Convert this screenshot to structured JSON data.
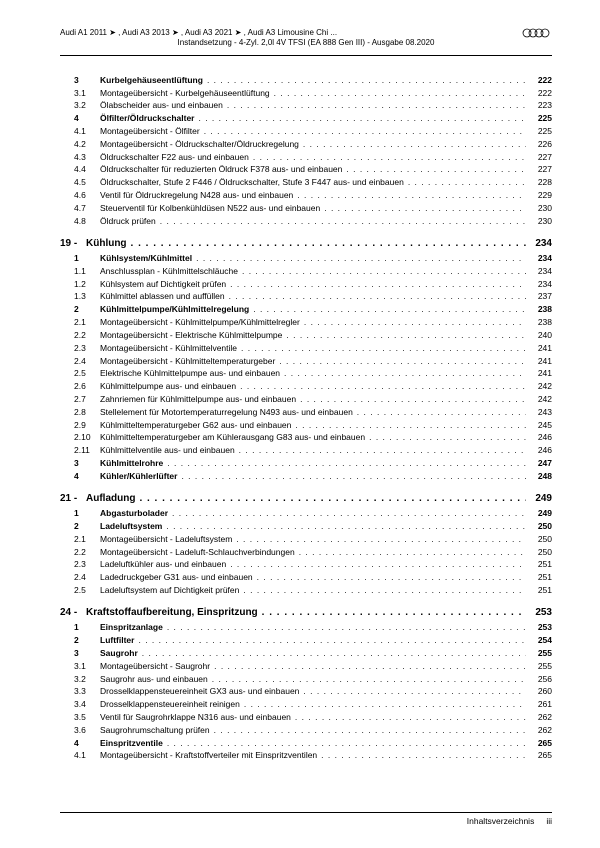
{
  "header": {
    "line1": "Audi A1 2011 ➤ , Audi A3 2013 ➤ , Audi A3 2021 ➤ , Audi A3 Limousine Chi ...",
    "line2": "Instandsetzung - 4-Zyl. 2,0l 4V TFSI (EA 888 Gen III) - Ausgabe 08.2020"
  },
  "footer": {
    "label": "Inhaltsverzeichnis",
    "page": "iii"
  },
  "toc": [
    {
      "type": "section",
      "num": "3",
      "title": "Kurbelgehäuseentlüftung",
      "page": "222",
      "bold": true
    },
    {
      "type": "sub",
      "num": "3.1",
      "title": "Montageübersicht - Kurbelgehäuseentlüftung",
      "page": "222"
    },
    {
      "type": "sub",
      "num": "3.2",
      "title": "Ölabscheider aus- und einbauen",
      "page": "223"
    },
    {
      "type": "section",
      "num": "4",
      "title": "Ölfilter/Öldruckschalter",
      "page": "225",
      "bold": true
    },
    {
      "type": "sub",
      "num": "4.1",
      "title": "Montageübersicht - Ölfilter",
      "page": "225"
    },
    {
      "type": "sub",
      "num": "4.2",
      "title": "Montageübersicht - Öldruckschalter/Öldruckregelung",
      "page": "226"
    },
    {
      "type": "sub",
      "num": "4.3",
      "title": "Öldruckschalter F22 aus- und einbauen",
      "page": "227"
    },
    {
      "type": "sub",
      "num": "4.4",
      "title": "Öldruckschalter für reduzierten Öldruck F378 aus- und einbauen",
      "page": "227"
    },
    {
      "type": "sub",
      "num": "4.5",
      "title": "Öldruckschalter, Stufe 2 F446 / Öldruckschalter, Stufe 3 F447 aus- und einbauen",
      "page": "228"
    },
    {
      "type": "sub",
      "num": "4.6",
      "title": "Ventil für Öldruckregelung N428 aus- und einbauen",
      "page": "229"
    },
    {
      "type": "sub",
      "num": "4.7",
      "title": "Steuerventil für Kolbenkühldüsen N522 aus- und einbauen",
      "page": "230"
    },
    {
      "type": "sub",
      "num": "4.8",
      "title": "Öldruck prüfen",
      "page": "230"
    },
    {
      "type": "chapter",
      "num": "19 -",
      "title": "Kühlung",
      "page": "234"
    },
    {
      "type": "section",
      "num": "1",
      "title": "Kühlsystem/Kühlmittel",
      "page": "234",
      "bold": true
    },
    {
      "type": "sub",
      "num": "1.1",
      "title": "Anschlussplan - Kühlmittelschläuche",
      "page": "234"
    },
    {
      "type": "sub",
      "num": "1.2",
      "title": "Kühlsystem auf Dichtigkeit prüfen",
      "page": "234"
    },
    {
      "type": "sub",
      "num": "1.3",
      "title": "Kühlmittel ablassen und auffüllen",
      "page": "237"
    },
    {
      "type": "section",
      "num": "2",
      "title": "Kühlmittelpumpe/Kühlmittelregelung",
      "page": "238",
      "bold": true
    },
    {
      "type": "sub",
      "num": "2.1",
      "title": "Montageübersicht - Kühlmittelpumpe/Kühlmittelregler",
      "page": "238"
    },
    {
      "type": "sub",
      "num": "2.2",
      "title": "Montageübersicht - Elektrische Kühlmittelpumpe",
      "page": "240"
    },
    {
      "type": "sub",
      "num": "2.3",
      "title": "Montageübersicht - Kühlmittelventile",
      "page": "241"
    },
    {
      "type": "sub",
      "num": "2.4",
      "title": "Montageübersicht - Kühlmitteltemperaturgeber",
      "page": "241"
    },
    {
      "type": "sub",
      "num": "2.5",
      "title": "Elektrische Kühlmittelpumpe aus- und einbauen",
      "page": "241"
    },
    {
      "type": "sub",
      "num": "2.6",
      "title": "Kühlmittelpumpe aus- und einbauen",
      "page": "242"
    },
    {
      "type": "sub",
      "num": "2.7",
      "title": "Zahnriemen für Kühlmittelpumpe aus- und einbauen",
      "page": "242"
    },
    {
      "type": "sub",
      "num": "2.8",
      "title": "Stellelement für Motortemperaturregelung N493 aus- und einbauen",
      "page": "243"
    },
    {
      "type": "sub",
      "num": "2.9",
      "title": "Kühlmitteltemperaturgeber G62 aus- und einbauen",
      "page": "245"
    },
    {
      "type": "sub",
      "num": "2.10",
      "title": "Kühlmitteltemperaturgeber am Kühlerausgang G83 aus- und einbauen",
      "page": "246"
    },
    {
      "type": "sub",
      "num": "2.11",
      "title": "Kühlmittelventile aus- und einbauen",
      "page": "246"
    },
    {
      "type": "section",
      "num": "3",
      "title": "Kühlmittelrohre",
      "page": "247",
      "bold": true
    },
    {
      "type": "section",
      "num": "4",
      "title": "Kühler/Kühlerlüfter",
      "page": "248",
      "bold": true
    },
    {
      "type": "chapter",
      "num": "21 -",
      "title": "Aufladung",
      "page": "249"
    },
    {
      "type": "section",
      "num": "1",
      "title": "Abgasturbolader",
      "page": "249",
      "bold": true
    },
    {
      "type": "section",
      "num": "2",
      "title": "Ladeluftsystem",
      "page": "250",
      "bold": true
    },
    {
      "type": "sub",
      "num": "2.1",
      "title": "Montageübersicht - Ladeluftsystem",
      "page": "250"
    },
    {
      "type": "sub",
      "num": "2.2",
      "title": "Montageübersicht - Ladeluft-Schlauchverbindungen",
      "page": "250"
    },
    {
      "type": "sub",
      "num": "2.3",
      "title": "Ladeluftkühler aus- und einbauen",
      "page": "251"
    },
    {
      "type": "sub",
      "num": "2.4",
      "title": "Ladedruckgeber G31 aus- und einbauen",
      "page": "251"
    },
    {
      "type": "sub",
      "num": "2.5",
      "title": "Ladeluftsystem auf Dichtigkeit prüfen",
      "page": "251"
    },
    {
      "type": "chapter",
      "num": "24 -",
      "title": "Kraftstoffaufbereitung, Einspritzung",
      "page": "253"
    },
    {
      "type": "section",
      "num": "1",
      "title": "Einspritzanlage",
      "page": "253",
      "bold": true
    },
    {
      "type": "section",
      "num": "2",
      "title": "Luftfilter",
      "page": "254",
      "bold": true
    },
    {
      "type": "section",
      "num": "3",
      "title": "Saugrohr",
      "page": "255",
      "bold": true
    },
    {
      "type": "sub",
      "num": "3.1",
      "title": "Montageübersicht - Saugrohr",
      "page": "255"
    },
    {
      "type": "sub",
      "num": "3.2",
      "title": "Saugrohr aus- und einbauen",
      "page": "256"
    },
    {
      "type": "sub",
      "num": "3.3",
      "title": "Drosselklappensteuereinheit GX3 aus- und einbauen",
      "page": "260"
    },
    {
      "type": "sub",
      "num": "3.4",
      "title": "Drosselklappensteuereinheit reinigen",
      "page": "261"
    },
    {
      "type": "sub",
      "num": "3.5",
      "title": "Ventil für Saugrohrklappe N316 aus- und einbauen",
      "page": "262"
    },
    {
      "type": "sub",
      "num": "3.6",
      "title": "Saugrohrumschaltung prüfen",
      "page": "262"
    },
    {
      "type": "section",
      "num": "4",
      "title": "Einspritzventile",
      "page": "265",
      "bold": true
    },
    {
      "type": "sub",
      "num": "4.1",
      "title": "Montageübersicht - Kraftstoffverteiler mit Einspritzventilen",
      "page": "265"
    }
  ]
}
